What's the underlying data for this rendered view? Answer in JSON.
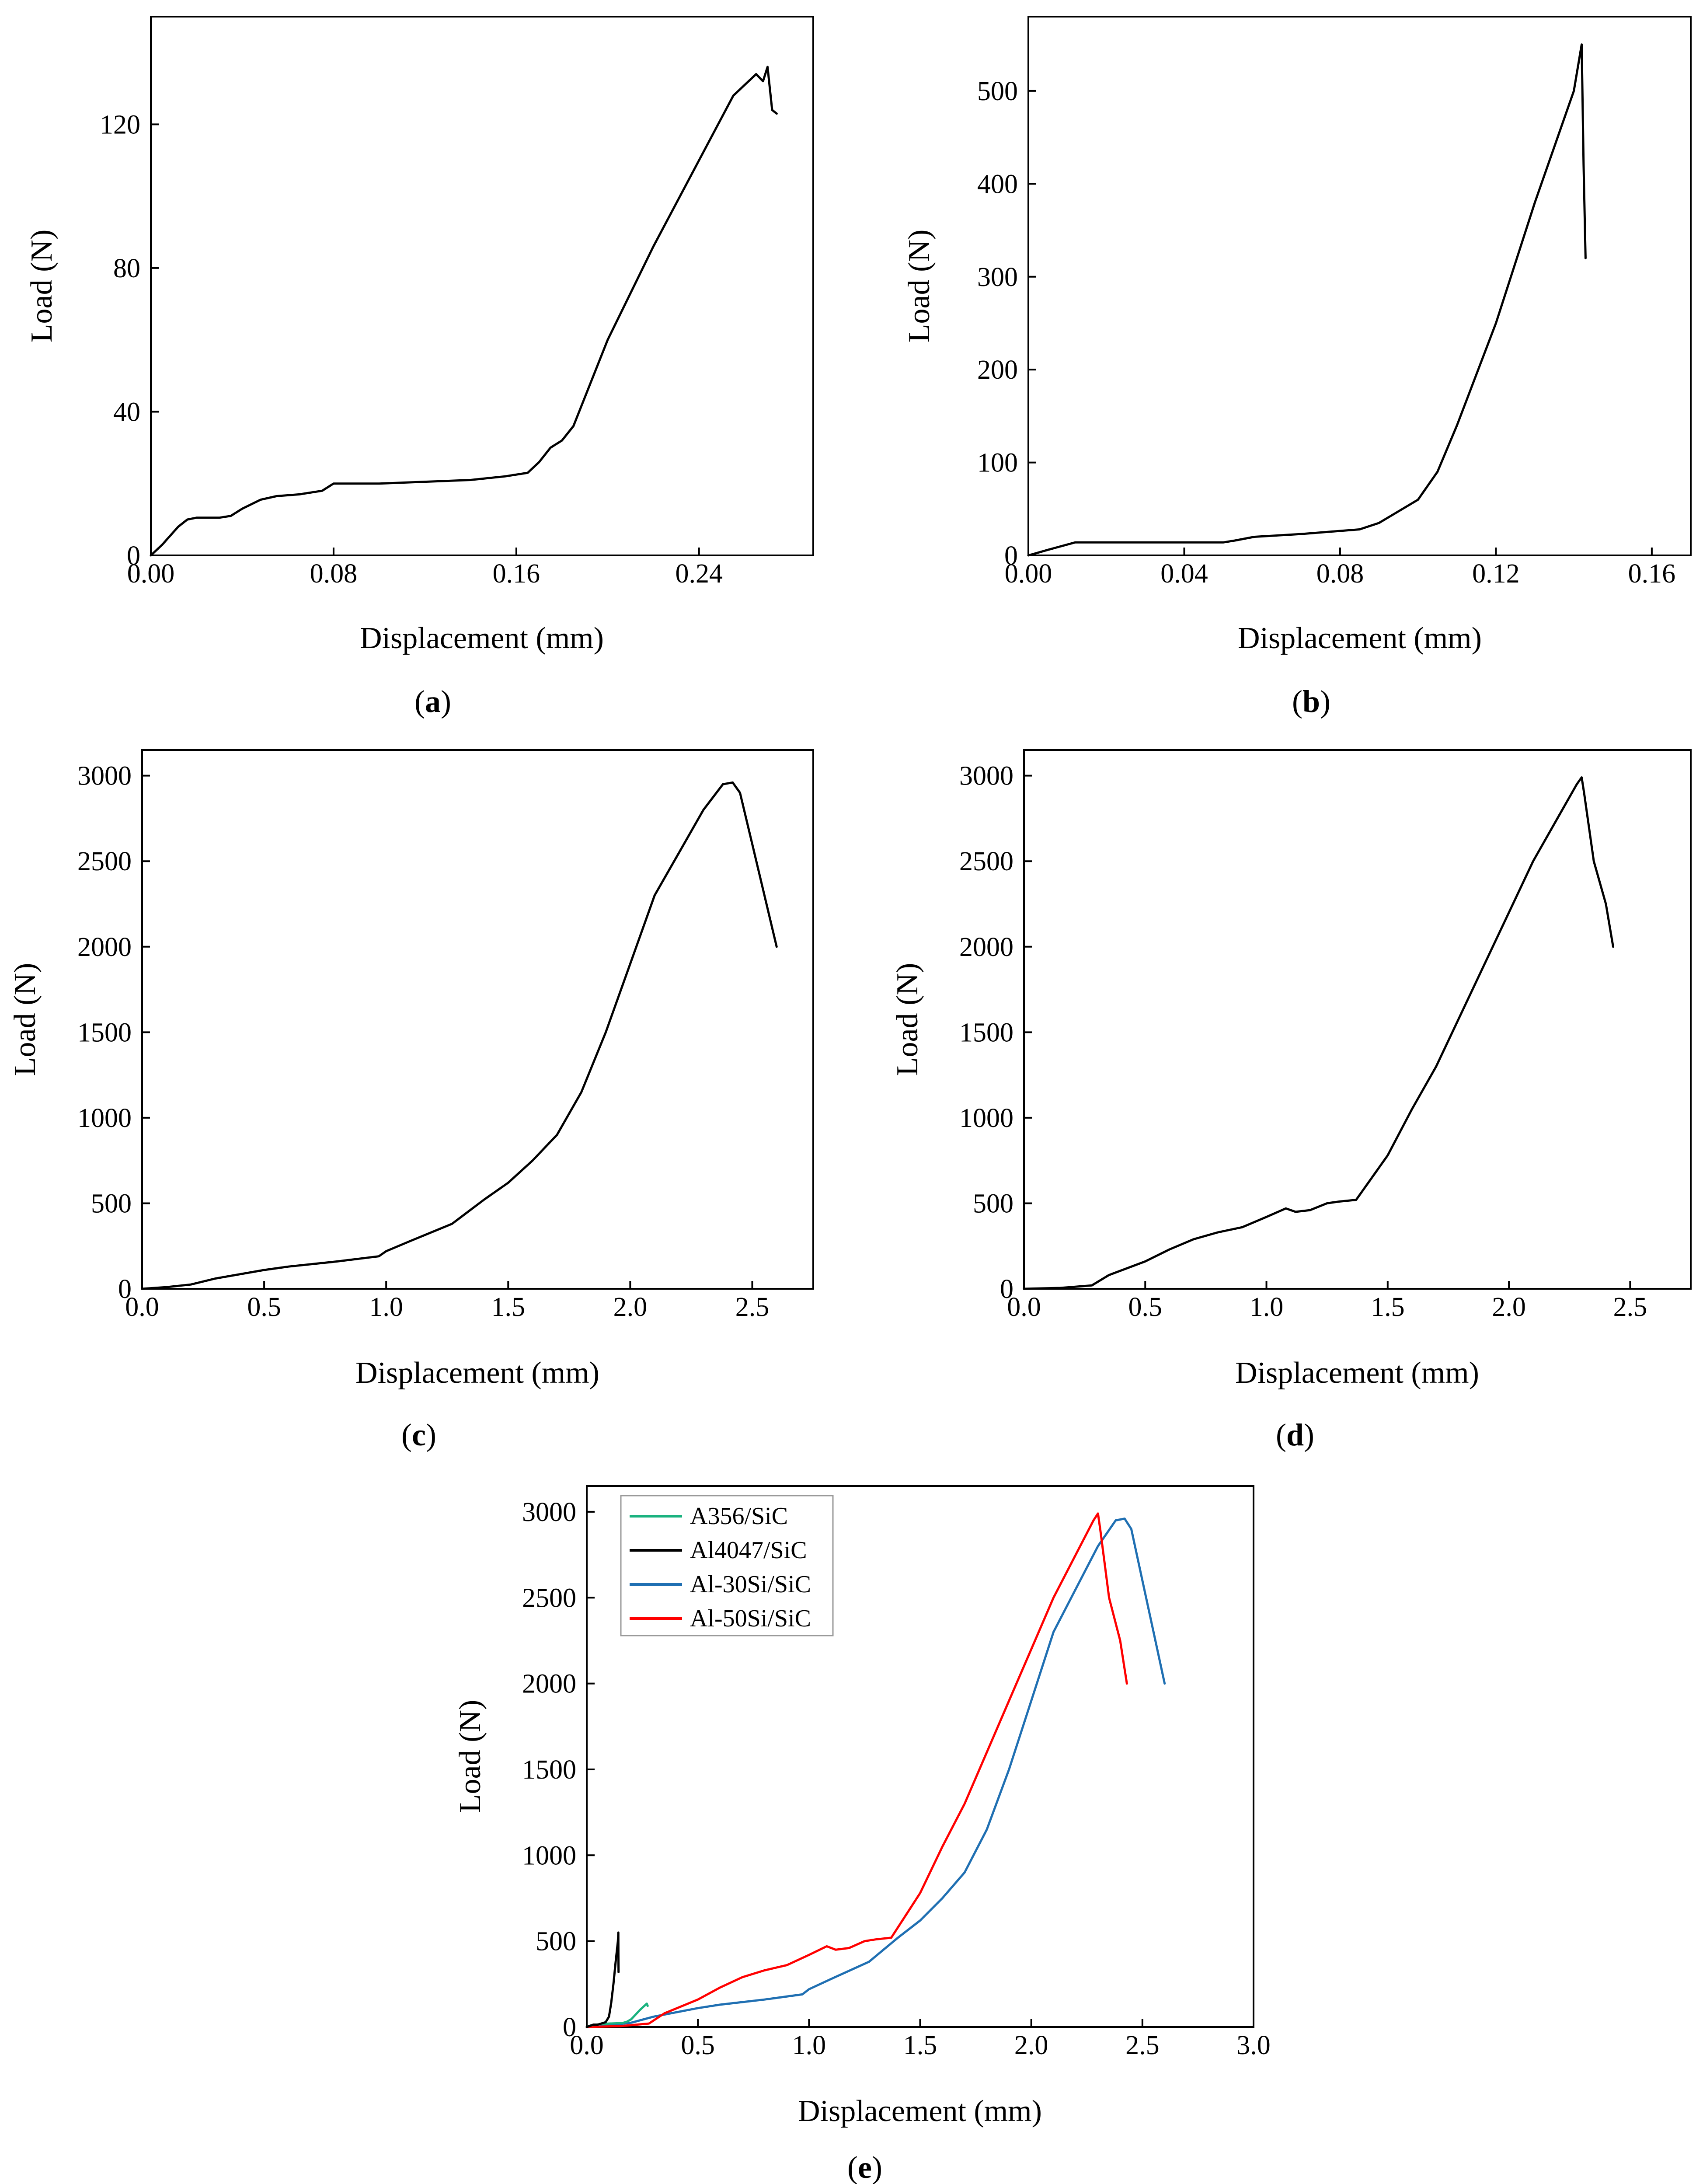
{
  "chart_data": [
    {
      "id": "a",
      "type": "line",
      "caption": "a",
      "xlabel": "Displacement (mm)",
      "ylabel": "Load (N)",
      "xlim": [
        0,
        0.29
      ],
      "ylim": [
        0,
        150
      ],
      "xticks": [
        0,
        0.08,
        0.16,
        0.24
      ],
      "xtick_labels": [
        "0.00",
        "0.08",
        "0.16",
        "0.24"
      ],
      "yticks": [
        0,
        40,
        80,
        120
      ],
      "ytick_labels": [
        "0",
        "40",
        "80",
        "120"
      ],
      "series": [
        {
          "name": "A356/SiC",
          "color": "#000000",
          "x": [
            0,
            0.005,
            0.012,
            0.016,
            0.02,
            0.03,
            0.035,
            0.04,
            0.048,
            0.055,
            0.065,
            0.075,
            0.08,
            0.09,
            0.1,
            0.12,
            0.14,
            0.155,
            0.165,
            0.17,
            0.175,
            0.18,
            0.185,
            0.2,
            0.22,
            0.24,
            0.255,
            0.265,
            0.268,
            0.27,
            0.272,
            0.274
          ],
          "y": [
            0,
            3,
            8,
            10,
            10.5,
            10.5,
            11,
            13,
            15.5,
            16.5,
            17,
            18,
            20,
            20,
            20,
            20.5,
            21,
            22,
            23,
            26,
            30,
            32,
            36,
            60,
            86,
            110,
            128,
            134,
            132,
            136,
            124,
            123
          ]
        }
      ]
    },
    {
      "id": "b",
      "type": "line",
      "caption": "b",
      "xlabel": "Displacement (mm)",
      "ylabel": "Load (N)",
      "xlim": [
        0,
        0.17
      ],
      "ylim": [
        0,
        580
      ],
      "xticks": [
        0,
        0.04,
        0.08,
        0.12,
        0.16
      ],
      "xtick_labels": [
        "0.00",
        "0.04",
        "0.08",
        "0.12",
        "0.16"
      ],
      "yticks": [
        0,
        100,
        200,
        300,
        400,
        500
      ],
      "ytick_labels": [
        "0",
        "100",
        "200",
        "300",
        "400",
        "500"
      ],
      "series": [
        {
          "name": "Al4047/SiC",
          "color": "#000000",
          "x": [
            0,
            0.005,
            0.012,
            0.03,
            0.05,
            0.053,
            0.058,
            0.07,
            0.085,
            0.09,
            0.1,
            0.105,
            0.11,
            0.12,
            0.13,
            0.14,
            0.142,
            0.1425,
            0.143
          ],
          "y": [
            0,
            6,
            14,
            14,
            14,
            16,
            20,
            23,
            28,
            35,
            60,
            90,
            140,
            250,
            380,
            500,
            550,
            420,
            320
          ]
        }
      ]
    },
    {
      "id": "c",
      "type": "line",
      "caption": "c",
      "xlabel": "Displacement (mm)",
      "ylabel": "Load (N)",
      "xlim": [
        0,
        2.75
      ],
      "ylim": [
        0,
        3150
      ],
      "xticks": [
        0,
        0.5,
        1.0,
        1.5,
        2.0,
        2.5
      ],
      "xtick_labels": [
        "0.0",
        "0.5",
        "1.0",
        "1.5",
        "2.0",
        "2.5"
      ],
      "yticks": [
        0,
        500,
        1000,
        1500,
        2000,
        2500,
        3000
      ],
      "ytick_labels": [
        "0",
        "500",
        "1000",
        "1500",
        "2000",
        "2500",
        "3000"
      ],
      "series": [
        {
          "name": "Al-30Si/SiC",
          "color": "#000000",
          "x": [
            0,
            0.1,
            0.2,
            0.3,
            0.5,
            0.6,
            0.8,
            0.97,
            1.0,
            1.1,
            1.27,
            1.4,
            1.5,
            1.6,
            1.7,
            1.8,
            1.9,
            2.0,
            2.1,
            2.2,
            2.3,
            2.38,
            2.42,
            2.45,
            2.5,
            2.55,
            2.6
          ],
          "y": [
            0,
            10,
            25,
            60,
            110,
            130,
            160,
            190,
            220,
            280,
            380,
            520,
            620,
            750,
            900,
            1150,
            1500,
            1900,
            2300,
            2550,
            2800,
            2950,
            2960,
            2900,
            2600,
            2300,
            2000
          ]
        }
      ]
    },
    {
      "id": "d",
      "type": "line",
      "caption": "d",
      "xlabel": "Displacement (mm)",
      "ylabel": "Load (N)",
      "xlim": [
        0,
        2.75
      ],
      "ylim": [
        0,
        3150
      ],
      "xticks": [
        0,
        0.5,
        1.0,
        1.5,
        2.0,
        2.5
      ],
      "xtick_labels": [
        "0.0",
        "0.5",
        "1.0",
        "1.5",
        "2.0",
        "2.5"
      ],
      "yticks": [
        0,
        500,
        1000,
        1500,
        2000,
        2500,
        3000
      ],
      "ytick_labels": [
        "0",
        "500",
        "1000",
        "1500",
        "2000",
        "2500",
        "3000"
      ],
      "series": [
        {
          "name": "Al-50Si/SiC",
          "color": "#000000",
          "x": [
            0,
            0.15,
            0.28,
            0.35,
            0.5,
            0.6,
            0.7,
            0.8,
            0.9,
            1.0,
            1.08,
            1.12,
            1.18,
            1.25,
            1.3,
            1.37,
            1.45,
            1.5,
            1.6,
            1.7,
            1.8,
            1.9,
            2.0,
            2.1,
            2.2,
            2.28,
            2.3,
            2.31,
            2.35,
            2.4,
            2.43
          ],
          "y": [
            0,
            5,
            20,
            80,
            160,
            230,
            290,
            330,
            360,
            420,
            470,
            450,
            460,
            500,
            510,
            520,
            680,
            780,
            1050,
            1300,
            1600,
            1900,
            2200,
            2500,
            2750,
            2950,
            2990,
            2900,
            2500,
            2250,
            2000
          ]
        }
      ]
    },
    {
      "id": "e",
      "type": "line",
      "caption": "e",
      "xlabel": "Displacement (mm)",
      "ylabel": "Load (N)",
      "xlim": [
        0,
        3.0
      ],
      "ylim": [
        0,
        3150
      ],
      "xticks": [
        0,
        0.5,
        1.0,
        1.5,
        2.0,
        2.5,
        3.0
      ],
      "xtick_labels": [
        "0.0",
        "0.5",
        "1.0",
        "1.5",
        "2.0",
        "2.5",
        "3.0"
      ],
      "yticks": [
        0,
        500,
        1000,
        1500,
        2000,
        2500,
        3000
      ],
      "ytick_labels": [
        "0",
        "500",
        "1000",
        "1500",
        "2000",
        "2500",
        "3000"
      ],
      "legend_position": "top-left",
      "series": [
        {
          "name": "Al-30Si/SiC",
          "color": "#1f6fb2",
          "x": [
            0,
            0.1,
            0.2,
            0.3,
            0.5,
            0.6,
            0.8,
            0.97,
            1.0,
            1.1,
            1.27,
            1.4,
            1.5,
            1.6,
            1.7,
            1.8,
            1.9,
            2.0,
            2.1,
            2.2,
            2.3,
            2.38,
            2.42,
            2.45,
            2.5,
            2.55,
            2.6
          ],
          "y": [
            0,
            10,
            25,
            60,
            110,
            130,
            160,
            190,
            220,
            280,
            380,
            520,
            620,
            750,
            900,
            1150,
            1500,
            1900,
            2300,
            2550,
            2800,
            2950,
            2960,
            2900,
            2600,
            2300,
            2000
          ]
        },
        {
          "name": "Al-50Si/SiC",
          "color": "#ff0000",
          "x": [
            0,
            0.15,
            0.28,
            0.35,
            0.5,
            0.6,
            0.7,
            0.8,
            0.9,
            1.0,
            1.08,
            1.12,
            1.18,
            1.25,
            1.3,
            1.37,
            1.45,
            1.5,
            1.6,
            1.7,
            1.8,
            1.9,
            2.0,
            2.1,
            2.2,
            2.28,
            2.3,
            2.31,
            2.35,
            2.4,
            2.43
          ],
          "y": [
            0,
            5,
            20,
            80,
            160,
            230,
            290,
            330,
            360,
            420,
            470,
            450,
            460,
            500,
            510,
            520,
            680,
            780,
            1050,
            1300,
            1600,
            1900,
            2200,
            2500,
            2750,
            2950,
            2990,
            2900,
            2500,
            2250,
            2000
          ]
        },
        {
          "name": "A356/SiC",
          "color": "#1ab27f",
          "x": [
            0,
            0.02,
            0.05,
            0.1,
            0.16,
            0.18,
            0.2,
            0.24,
            0.265,
            0.27,
            0.274
          ],
          "y": [
            0,
            10,
            15,
            20,
            23,
            30,
            45,
            100,
            130,
            136,
            123
          ]
        },
        {
          "name": "Al4047/SiC",
          "color": "#000000",
          "x": [
            0,
            0.03,
            0.05,
            0.085,
            0.1,
            0.11,
            0.12,
            0.13,
            0.14,
            0.142,
            0.1425,
            0.143
          ],
          "y": [
            0,
            14,
            14,
            28,
            60,
            140,
            250,
            380,
            500,
            550,
            420,
            320
          ]
        }
      ],
      "legend_order": [
        "A356/SiC",
        "Al4047/SiC",
        "Al-30Si/SiC",
        "Al-50Si/SiC"
      ]
    }
  ]
}
